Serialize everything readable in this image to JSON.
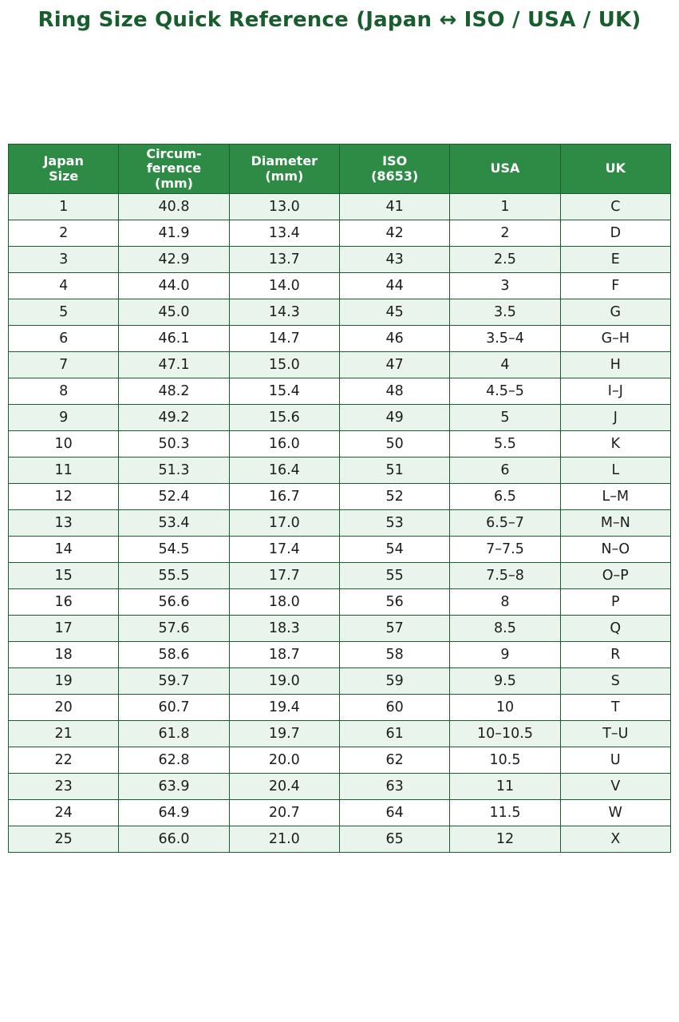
{
  "page": {
    "title": "Ring Size Quick Reference (Japan ↔ ISO / USA / UK)"
  },
  "colors": {
    "title_text": "#175d2d",
    "header_bg": "#2e8b46",
    "header_text": "#ffffff",
    "border": "#1d5c30",
    "row_alt_bg": "#e9f5ec",
    "row_bg": "#ffffff",
    "cell_text": "#1c1c1c"
  },
  "chart_data": {
    "type": "table",
    "title": "Ring Size Quick Reference (Japan ↔ ISO / USA / UK)",
    "columns": [
      "Japan\nSize",
      "Circum-\nference\n(mm)",
      "Diameter\n(mm)",
      "ISO\n(8653)",
      "USA",
      "UK"
    ],
    "rows": [
      [
        "1",
        "40.8",
        "13.0",
        "41",
        "1",
        "C"
      ],
      [
        "2",
        "41.9",
        "13.4",
        "42",
        "2",
        "D"
      ],
      [
        "3",
        "42.9",
        "13.7",
        "43",
        "2.5",
        "E"
      ],
      [
        "4",
        "44.0",
        "14.0",
        "44",
        "3",
        "F"
      ],
      [
        "5",
        "45.0",
        "14.3",
        "45",
        "3.5",
        "G"
      ],
      [
        "6",
        "46.1",
        "14.7",
        "46",
        "3.5–4",
        "G–H"
      ],
      [
        "7",
        "47.1",
        "15.0",
        "47",
        "4",
        "H"
      ],
      [
        "8",
        "48.2",
        "15.4",
        "48",
        "4.5–5",
        "I–J"
      ],
      [
        "9",
        "49.2",
        "15.6",
        "49",
        "5",
        "J"
      ],
      [
        "10",
        "50.3",
        "16.0",
        "50",
        "5.5",
        "K"
      ],
      [
        "11",
        "51.3",
        "16.4",
        "51",
        "6",
        "L"
      ],
      [
        "12",
        "52.4",
        "16.7",
        "52",
        "6.5",
        "L–M"
      ],
      [
        "13",
        "53.4",
        "17.0",
        "53",
        "6.5–7",
        "M–N"
      ],
      [
        "14",
        "54.5",
        "17.4",
        "54",
        "7–7.5",
        "N–O"
      ],
      [
        "15",
        "55.5",
        "17.7",
        "55",
        "7.5–8",
        "O–P"
      ],
      [
        "16",
        "56.6",
        "18.0",
        "56",
        "8",
        "P"
      ],
      [
        "17",
        "57.6",
        "18.3",
        "57",
        "8.5",
        "Q"
      ],
      [
        "18",
        "58.6",
        "18.7",
        "58",
        "9",
        "R"
      ],
      [
        "19",
        "59.7",
        "19.0",
        "59",
        "9.5",
        "S"
      ],
      [
        "20",
        "60.7",
        "19.4",
        "60",
        "10",
        "T"
      ],
      [
        "21",
        "61.8",
        "19.7",
        "61",
        "10–10.5",
        "T–U"
      ],
      [
        "22",
        "62.8",
        "20.0",
        "62",
        "10.5",
        "U"
      ],
      [
        "23",
        "63.9",
        "20.4",
        "63",
        "11",
        "V"
      ],
      [
        "24",
        "64.9",
        "20.7",
        "64",
        "11.5",
        "W"
      ],
      [
        "25",
        "66.0",
        "21.0",
        "65",
        "12",
        "X"
      ]
    ]
  }
}
